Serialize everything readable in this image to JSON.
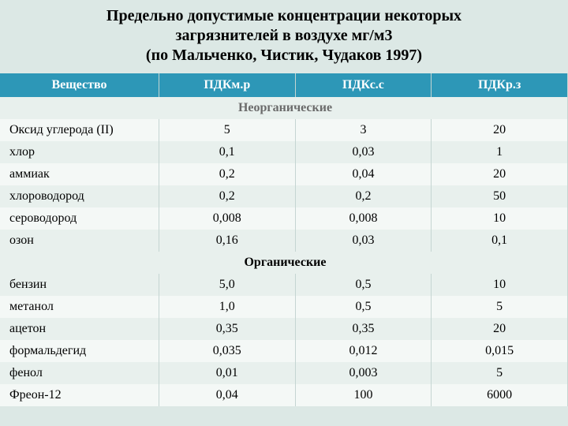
{
  "title_line1": "Предельно допустимые  концентрации некоторых",
  "title_line2": "загрязнителей в воздухе мг/м3",
  "title_line3": "(по Мальченко, Чистик, Чудаков 1997)",
  "headers": {
    "c1": "Вещество",
    "c2": "ПДКм.р",
    "c3": "ПДКс.с",
    "c4": "ПДКр.з"
  },
  "sections": {
    "inorganic": "Неорганические",
    "organic": "Органические"
  },
  "rows_inorganic": [
    {
      "name": "Оксид углерода (II)",
      "mr": "5",
      "ss": "3",
      "rz": "20"
    },
    {
      "name": "хлор",
      "mr": "0,1",
      "ss": "0,03",
      "rz": "1"
    },
    {
      "name": "аммиак",
      "mr": "0,2",
      "ss": "0,04",
      "rz": "20"
    },
    {
      "name": "хлороводород",
      "mr": "0,2",
      "ss": "0,2",
      "rz": "50"
    },
    {
      "name": "сероводород",
      "mr": "0,008",
      "ss": "0,008",
      "rz": "10"
    },
    {
      "name": "озон",
      "mr": "0,16",
      "ss": "0,03",
      "rz": "0,1"
    }
  ],
  "rows_organic": [
    {
      "name": "бензин",
      "mr": "5,0",
      "ss": "0,5",
      "rz": "10"
    },
    {
      "name": "метанол",
      "mr": "1,0",
      "ss": "0,5",
      "rz": "5"
    },
    {
      "name": "ацетон",
      "mr": "0,35",
      "ss": "0,35",
      "rz": "20"
    },
    {
      "name": "формальдегид",
      "mr": "0,035",
      "ss": "0,012",
      "rz": "0,015"
    },
    {
      "name": "фенол",
      "mr": "0,01",
      "ss": "0,003",
      "rz": "5"
    },
    {
      "name": "Фреон-12",
      "mr": "0,04",
      "ss": "100",
      "rz": "6000"
    }
  ],
  "colors": {
    "page_bg": "#dce8e5",
    "header_bg": "#2d97b7",
    "header_text": "#ffffff",
    "row_odd": "#e8f0ed",
    "row_even": "#f4f8f6",
    "section_text": "#6b6b6b"
  }
}
